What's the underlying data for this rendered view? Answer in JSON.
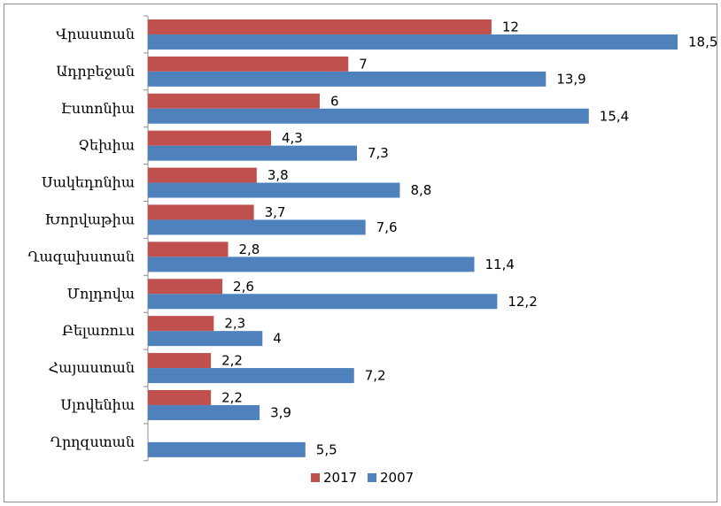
{
  "chart_data": {
    "type": "bar",
    "orientation": "horizontal",
    "title": "",
    "xlabel": "",
    "ylabel": "",
    "categories": [
      "Վրաստան",
      "Ադրբեջան",
      "Էստոնիա",
      "Չեխիա",
      "Սակեդոնիա",
      "Խորվաթիա",
      "Ղազախստան",
      "Մոլդովա",
      "Բելառուս",
      "Հայաստան",
      "Սլովենիա",
      "Ղրղզստան"
    ],
    "series": [
      {
        "name": "2017",
        "color": "#c0504d",
        "values": [
          12,
          7,
          6,
          4.3,
          3.8,
          3.7,
          2.8,
          2.6,
          2.3,
          2.2,
          2.2,
          null
        ],
        "labels": [
          "12",
          "7",
          "6",
          "4,3",
          "3,8",
          "3,7",
          "2,8",
          "2,6",
          "2,3",
          "2,2",
          "2,2",
          ""
        ]
      },
      {
        "name": "2007",
        "color": "#4f81bd",
        "values": [
          18.5,
          13.9,
          15.4,
          7.3,
          8.8,
          7.6,
          11.4,
          12.2,
          4,
          7.2,
          3.9,
          5.5
        ],
        "labels": [
          "18,5",
          "13,9",
          "15,4",
          "7,3",
          "8,8",
          "7,6",
          "11,4",
          "12,2",
          "4",
          "7,2",
          "3,9",
          "5,5"
        ]
      }
    ],
    "xlim": [
      0,
      20
    ],
    "grid": false,
    "legend_position": "bottom"
  }
}
